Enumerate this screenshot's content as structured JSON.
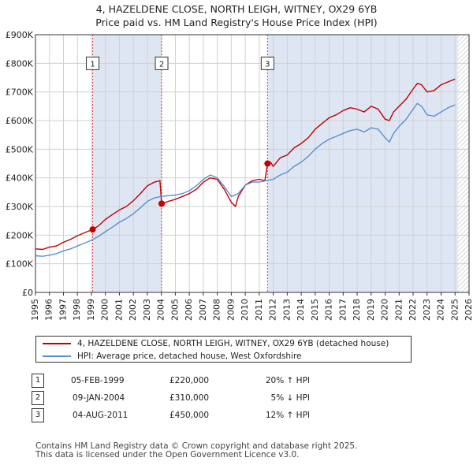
{
  "title": {
    "line1": "4, HAZELDENE CLOSE, NORTH LEIGH, WITNEY, OX29 6YB",
    "line2": "Price paid vs. HM Land Registry's House Price Index (HPI)"
  },
  "chart_data": {
    "type": "line",
    "title": "4, HAZELDENE CLOSE, NORTH LEIGH, WITNEY, OX29 6YB — Price paid vs. HM Land Registry's House Price Index (HPI)",
    "xlabel": "",
    "ylabel": "",
    "xlim": [
      1995,
      2026
    ],
    "ylim": [
      0,
      900000
    ],
    "x_ticks": [
      "1995",
      "1996",
      "1997",
      "1998",
      "1999",
      "2000",
      "2001",
      "2002",
      "2003",
      "2004",
      "2005",
      "2006",
      "2007",
      "2008",
      "2009",
      "2010",
      "2011",
      "2012",
      "2013",
      "2014",
      "2015",
      "2016",
      "2017",
      "2018",
      "2019",
      "2020",
      "2021",
      "2022",
      "2023",
      "2024",
      "2025",
      "2026"
    ],
    "y_ticks": [
      {
        "value": 0,
        "label": "£0"
      },
      {
        "value": 100000,
        "label": "£100K"
      },
      {
        "value": 200000,
        "label": "£200K"
      },
      {
        "value": 300000,
        "label": "£300K"
      },
      {
        "value": 400000,
        "label": "£400K"
      },
      {
        "value": 500000,
        "label": "£500K"
      },
      {
        "value": 600000,
        "label": "£600K"
      },
      {
        "value": 700000,
        "label": "£700K"
      },
      {
        "value": 800000,
        "label": "£800K"
      },
      {
        "value": 900000,
        "label": "£900K"
      }
    ],
    "grid": true,
    "shaded_regions": [
      {
        "from": 1999.09,
        "to": 2004.02,
        "color": "#dfe6f3"
      },
      {
        "from": 2011.59,
        "to": 2025.2,
        "color": "#dfe6f3"
      },
      {
        "from": 2025.2,
        "to": 2026,
        "hatched": true
      }
    ],
    "series": [
      {
        "name": "4, HAZELDENE CLOSE, NORTH LEIGH, WITNEY, OX29 6YB (detached house)",
        "color": "#c00000",
        "x": [
          1995.0,
          1995.5,
          1996.0,
          1996.5,
          1997.0,
          1997.5,
          1998.0,
          1998.5,
          1999.09,
          1999.5,
          2000.0,
          2000.5,
          2001.0,
          2001.5,
          2002.0,
          2002.5,
          2003.0,
          2003.5,
          2003.9,
          2004.02,
          2004.5,
          2005.0,
          2005.5,
          2006.0,
          2006.5,
          2007.0,
          2007.5,
          2008.0,
          2008.5,
          2009.0,
          2009.3,
          2009.5,
          2010.0,
          2010.5,
          2011.0,
          2011.4,
          2011.59,
          2011.8,
          2012.0,
          2012.5,
          2013.0,
          2013.5,
          2014.0,
          2014.5,
          2015.0,
          2015.5,
          2016.0,
          2016.5,
          2017.0,
          2017.5,
          2018.0,
          2018.5,
          2019.0,
          2019.5,
          2020.0,
          2020.3,
          2020.6,
          2021.0,
          2021.5,
          2022.0,
          2022.3,
          2022.6,
          2023.0,
          2023.5,
          2024.0,
          2024.5,
          2025.0
        ],
        "y": [
          152000,
          150000,
          158000,
          162000,
          175000,
          185000,
          198000,
          208000,
          220000,
          232000,
          255000,
          272000,
          288000,
          300000,
          320000,
          345000,
          372000,
          385000,
          390000,
          310000,
          318000,
          325000,
          335000,
          345000,
          360000,
          385000,
          400000,
          395000,
          360000,
          315000,
          300000,
          335000,
          375000,
          390000,
          395000,
          390000,
          450000,
          455000,
          440000,
          470000,
          480000,
          505000,
          520000,
          540000,
          570000,
          590000,
          610000,
          620000,
          635000,
          645000,
          640000,
          630000,
          650000,
          640000,
          605000,
          600000,
          630000,
          650000,
          675000,
          710000,
          730000,
          725000,
          700000,
          705000,
          725000,
          735000,
          745000
        ]
      },
      {
        "name": "HPI: Average price, detached house, West Oxfordshire",
        "color": "#5b8fd0",
        "x": [
          1995.0,
          1995.5,
          1996.0,
          1996.5,
          1997.0,
          1997.5,
          1998.0,
          1998.5,
          1999.0,
          1999.5,
          2000.0,
          2000.5,
          2001.0,
          2001.5,
          2002.0,
          2002.5,
          2003.0,
          2003.5,
          2004.0,
          2004.5,
          2005.0,
          2005.5,
          2006.0,
          2006.5,
          2007.0,
          2007.5,
          2008.0,
          2008.5,
          2009.0,
          2009.5,
          2010.0,
          2010.5,
          2011.0,
          2011.5,
          2012.0,
          2012.5,
          2013.0,
          2013.5,
          2014.0,
          2014.5,
          2015.0,
          2015.5,
          2016.0,
          2016.5,
          2017.0,
          2017.5,
          2018.0,
          2018.5,
          2019.0,
          2019.5,
          2020.0,
          2020.3,
          2020.6,
          2021.0,
          2021.5,
          2022.0,
          2022.3,
          2022.6,
          2023.0,
          2023.5,
          2024.0,
          2024.5,
          2025.0
        ],
        "y": [
          128000,
          126000,
          130000,
          135000,
          145000,
          152000,
          162000,
          172000,
          182000,
          195000,
          212000,
          228000,
          245000,
          258000,
          275000,
          295000,
          318000,
          330000,
          335000,
          338000,
          340000,
          345000,
          355000,
          372000,
          395000,
          410000,
          400000,
          370000,
          335000,
          345000,
          375000,
          385000,
          385000,
          390000,
          395000,
          410000,
          420000,
          440000,
          455000,
          475000,
          500000,
          520000,
          535000,
          545000,
          555000,
          565000,
          570000,
          560000,
          575000,
          570000,
          540000,
          525000,
          555000,
          580000,
          605000,
          640000,
          660000,
          650000,
          620000,
          615000,
          630000,
          645000,
          655000
        ]
      }
    ],
    "sales": [
      {
        "marker": "1",
        "x": 1999.09,
        "y": 220000
      },
      {
        "marker": "2",
        "x": 2004.02,
        "y": 310000
      },
      {
        "marker": "3",
        "x": 2011.59,
        "y": 450000
      }
    ],
    "marker_label_y": 800000
  },
  "legend": {
    "items": [
      {
        "label": "4, HAZELDENE CLOSE, NORTH LEIGH, WITNEY, OX29 6YB (detached house)",
        "color": "#c00000"
      },
      {
        "label": "HPI: Average price, detached house, West Oxfordshire",
        "color": "#5b8fd0"
      }
    ]
  },
  "table": {
    "rows": [
      {
        "marker": "1",
        "date": "05-FEB-1999",
        "price": "£220,000",
        "hpi": "20% ↑ HPI"
      },
      {
        "marker": "2",
        "date": "09-JAN-2004",
        "price": "£310,000",
        "hpi": "5% ↓ HPI"
      },
      {
        "marker": "3",
        "date": "04-AUG-2011",
        "price": "£450,000",
        "hpi": "12% ↑ HPI"
      }
    ]
  },
  "footer": {
    "line1": "Contains HM Land Registry data © Crown copyright and database right 2025.",
    "line2": "This data is licensed under the Open Government Licence v3.0."
  }
}
